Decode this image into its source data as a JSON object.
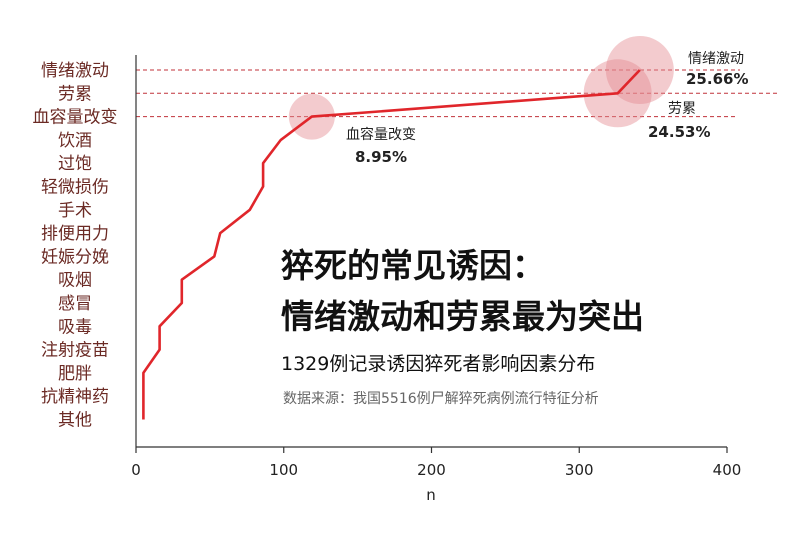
{
  "chart_data": {
    "type": "line",
    "title_line1": "猝死的常见诱因：",
    "title_line2": "情绪激动和劳累最为突出",
    "subtitle": "1329例记录诱因猝死者影响因素分布",
    "source": "数据来源：我国5516例尸解猝死病例流行特征分析",
    "xlabel": "n",
    "xlim": [
      0,
      400
    ],
    "xticks": [
      0,
      100,
      200,
      300,
      400
    ],
    "categories": [
      "情绪激动",
      "劳累",
      "血容量改变",
      "饮酒",
      "过饱",
      "轻微损伤",
      "手术",
      "排便用力",
      "妊娠分娩",
      "吸烟",
      "感冒",
      "吸毒",
      "注射疫苗",
      "肥胖",
      "抗精神药",
      "其他"
    ],
    "values": [
      341,
      326,
      119,
      98,
      86,
      86,
      77,
      57,
      53,
      31,
      31,
      16,
      16,
      5,
      5,
      5
    ],
    "line_color": "#e0262b",
    "bubble_color": "#e58c92",
    "highlights": [
      {
        "category": "情绪激动",
        "label": "情绪激动",
        "percent": "25.66%"
      },
      {
        "category": "劳累",
        "label": "劳累",
        "percent": "24.53%"
      },
      {
        "category": "血容量改变",
        "label": "血容量改变",
        "percent": "8.95%"
      }
    ]
  }
}
